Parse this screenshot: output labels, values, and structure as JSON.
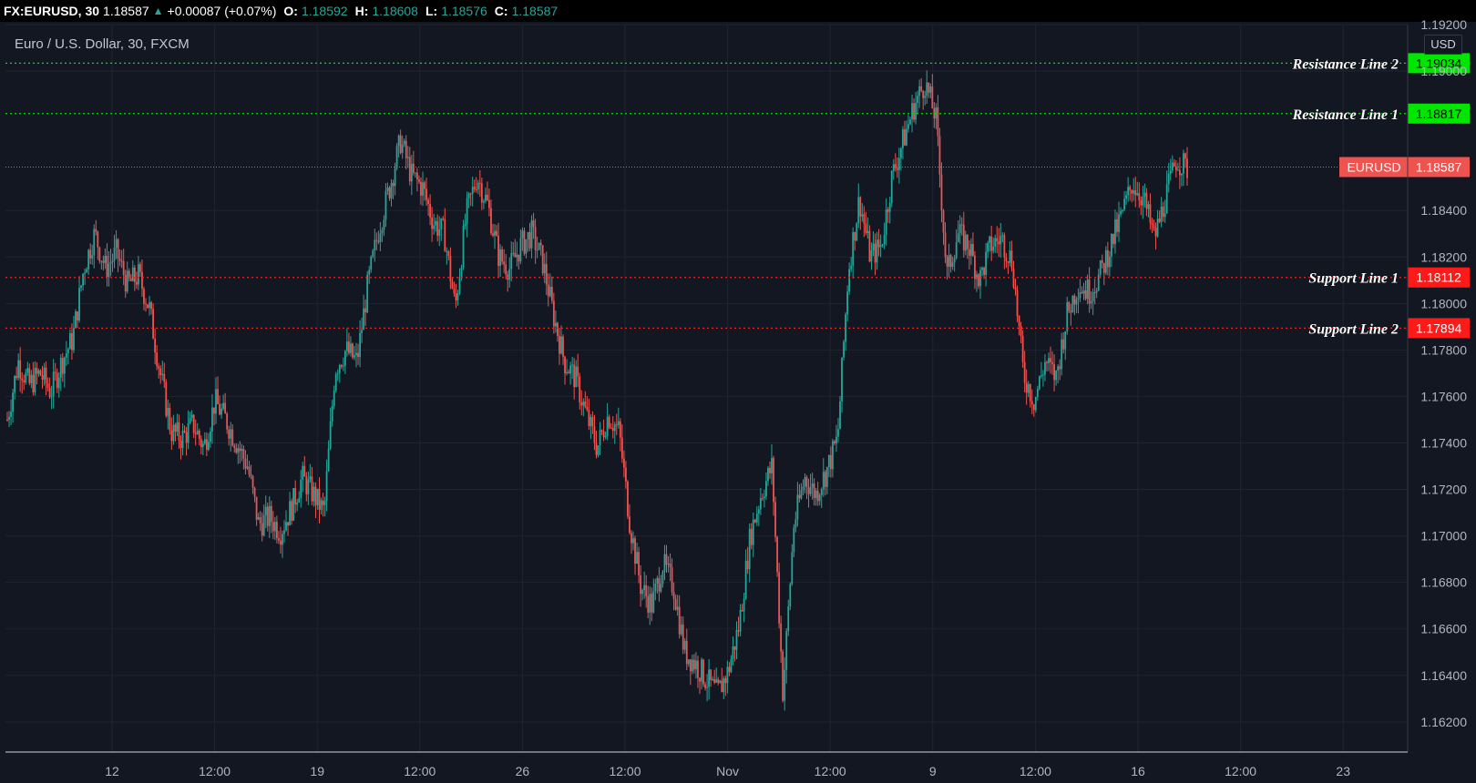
{
  "header": {
    "symbol": "FX:EURUSD, 30",
    "last": "1.18587",
    "change_icon": "triangle-up-icon",
    "change": "+0.00087 (+0.07%)",
    "o_label": "O:",
    "o_value": "1.18592",
    "h_label": "H:",
    "h_value": "1.18608",
    "l_label": "L:",
    "l_value": "1.18576",
    "c_label": "C:",
    "c_value": "1.18587"
  },
  "legend": {
    "title": "Euro / U.S. Dollar, 30, FXCM"
  },
  "currency": "USD",
  "colors": {
    "background": "#131722",
    "up": "#26a69a",
    "down": "#ef5350",
    "resistance": "#00e600",
    "support": "#ff1a1a",
    "price": "#ef5350"
  },
  "chart_data": {
    "type": "candlestick",
    "ylim": [
      1.1607,
      1.192
    ],
    "y_ticks": [
      "1.19200",
      "1.19000",
      "1.18400",
      "1.18200",
      "1.18000",
      "1.17800",
      "1.17600",
      "1.17400",
      "1.17200",
      "1.17000",
      "1.16800",
      "1.16600",
      "1.16400",
      "1.16200"
    ],
    "y_tick_values": [
      1.192,
      1.19,
      1.184,
      1.182,
      1.18,
      1.178,
      1.176,
      1.174,
      1.172,
      1.17,
      1.168,
      1.166,
      1.164,
      1.162
    ],
    "x_labels": [
      "12",
      "12:00",
      "19",
      "12:00",
      "26",
      "12:00",
      "Nov",
      "12:00",
      "9",
      "12:00",
      "16",
      "12:00",
      "23"
    ],
    "grid": true,
    "lines": [
      {
        "name": "Resistance Line 2",
        "value": 1.19034,
        "label": "1.19034",
        "kind": "resistance"
      },
      {
        "name": "Resistance Line 1",
        "value": 1.18817,
        "label": "1.18817",
        "kind": "resistance"
      },
      {
        "name": "Support Line 1",
        "value": 1.18112,
        "label": "1.18112",
        "kind": "support"
      },
      {
        "name": "Support Line 2",
        "value": 1.17894,
        "label": "1.17894",
        "kind": "support"
      }
    ],
    "last_price": {
      "symbol": "EURUSD",
      "value": 1.18587,
      "label": "1.18587"
    },
    "price_path": [
      [
        0,
        1.175
      ],
      [
        1,
        1.1775
      ],
      [
        2,
        1.1765
      ],
      [
        3,
        1.177
      ],
      [
        4,
        1.1762
      ],
      [
        5,
        1.1775
      ],
      [
        6,
        1.1785
      ],
      [
        7,
        1.1815
      ],
      [
        8,
        1.183
      ],
      [
        9,
        1.1815
      ],
      [
        10,
        1.1822
      ],
      [
        11,
        1.1808
      ],
      [
        12,
        1.1812
      ],
      [
        13,
        1.1798
      ],
      [
        14,
        1.177
      ],
      [
        15,
        1.1745
      ],
      [
        16,
        1.1742
      ],
      [
        17,
        1.1748
      ],
      [
        18,
        1.1738
      ],
      [
        19,
        1.1758
      ],
      [
        20,
        1.175
      ],
      [
        21,
        1.174
      ],
      [
        22,
        1.173
      ],
      [
        23,
        1.1705
      ],
      [
        24,
        1.1708
      ],
      [
        25,
        1.1702
      ],
      [
        26,
        1.1712
      ],
      [
        27,
        1.1725
      ],
      [
        28,
        1.1718
      ],
      [
        29,
        1.171
      ],
      [
        30,
        1.1772
      ],
      [
        31,
        1.178
      ],
      [
        32,
        1.1775
      ],
      [
        33,
        1.1808
      ],
      [
        34,
        1.1832
      ],
      [
        35,
        1.185
      ],
      [
        36,
        1.187
      ],
      [
        37,
        1.1855
      ],
      [
        38,
        1.185
      ],
      [
        39,
        1.1835
      ],
      [
        40,
        1.183
      ],
      [
        41,
        1.1798
      ],
      [
        42,
        1.1838
      ],
      [
        43,
        1.1855
      ],
      [
        44,
        1.1842
      ],
      [
        45,
        1.182
      ],
      [
        46,
        1.1815
      ],
      [
        47,
        1.1825
      ],
      [
        48,
        1.183
      ],
      [
        49,
        1.1818
      ],
      [
        50,
        1.1795
      ],
      [
        51,
        1.1775
      ],
      [
        52,
        1.1768
      ],
      [
        53,
        1.1752
      ],
      [
        54,
        1.1738
      ],
      [
        55,
        1.1752
      ],
      [
        56,
        1.1745
      ],
      [
        57,
        1.1705
      ],
      [
        58,
        1.1678
      ],
      [
        59,
        1.167
      ],
      [
        60,
        1.1688
      ],
      [
        61,
        1.1678
      ],
      [
        62,
        1.165
      ],
      [
        63,
        1.1645
      ],
      [
        64,
        1.1638
      ],
      [
        65,
        1.1632
      ],
      [
        66,
        1.1642
      ],
      [
        67,
        1.1662
      ],
      [
        68,
        1.17
      ],
      [
        69,
        1.1718
      ],
      [
        70,
        1.173
      ],
      [
        71,
        1.1632
      ],
      [
        72,
        1.1705
      ],
      [
        73,
        1.1725
      ],
      [
        74,
        1.1718
      ],
      [
        75,
        1.1728
      ],
      [
        76,
        1.1742
      ],
      [
        77,
        1.1815
      ],
      [
        78,
        1.1845
      ],
      [
        79,
        1.182
      ],
      [
        80,
        1.1825
      ],
      [
        81,
        1.1855
      ],
      [
        82,
        1.187
      ],
      [
        83,
        1.1885
      ],
      [
        84,
        1.1895
      ],
      [
        85,
        1.188
      ],
      [
        86,
        1.1812
      ],
      [
        87,
        1.183
      ],
      [
        88,
        1.1825
      ],
      [
        89,
        1.181
      ],
      [
        90,
        1.1825
      ],
      [
        91,
        1.1828
      ],
      [
        92,
        1.1818
      ],
      [
        93,
        1.177
      ],
      [
        94,
        1.1758
      ],
      [
        95,
        1.1775
      ],
      [
        96,
        1.1768
      ],
      [
        97,
        1.1795
      ],
      [
        98,
        1.1808
      ],
      [
        99,
        1.1805
      ],
      [
        100,
        1.1812
      ],
      [
        101,
        1.1825
      ],
      [
        102,
        1.1838
      ],
      [
        103,
        1.1852
      ],
      [
        104,
        1.1845
      ],
      [
        105,
        1.1828
      ],
      [
        106,
        1.1845
      ],
      [
        107,
        1.1862
      ],
      [
        108,
        1.1858
      ]
    ]
  }
}
